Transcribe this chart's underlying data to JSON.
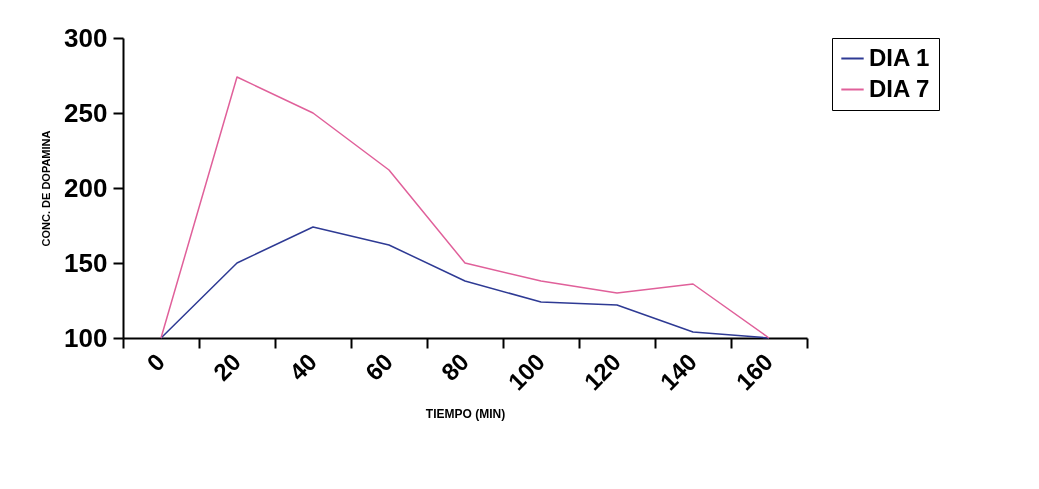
{
  "chart_data": {
    "type": "line",
    "xlabel": "TIEMPO (MIN)",
    "ylabel": "CONC. DE DOPAMINA",
    "categories": [
      "0",
      "20",
      "40",
      "60",
      "80",
      "100",
      "120",
      "140",
      "160"
    ],
    "series": [
      {
        "name": "DIA 1",
        "color": "#2e3a94",
        "values": [
          100,
          150,
          174,
          162,
          138,
          124,
          122,
          104,
          100
        ]
      },
      {
        "name": "DIA 7",
        "color": "#e0609a",
        "values": [
          100,
          274,
          250,
          212,
          150,
          138,
          130,
          136,
          100
        ]
      }
    ],
    "ylim": [
      100,
      300
    ],
    "yticks": [
      100,
      150,
      200,
      250,
      300
    ],
    "grid": false,
    "legend": "right",
    "marker": "none",
    "line_style": "solid"
  }
}
